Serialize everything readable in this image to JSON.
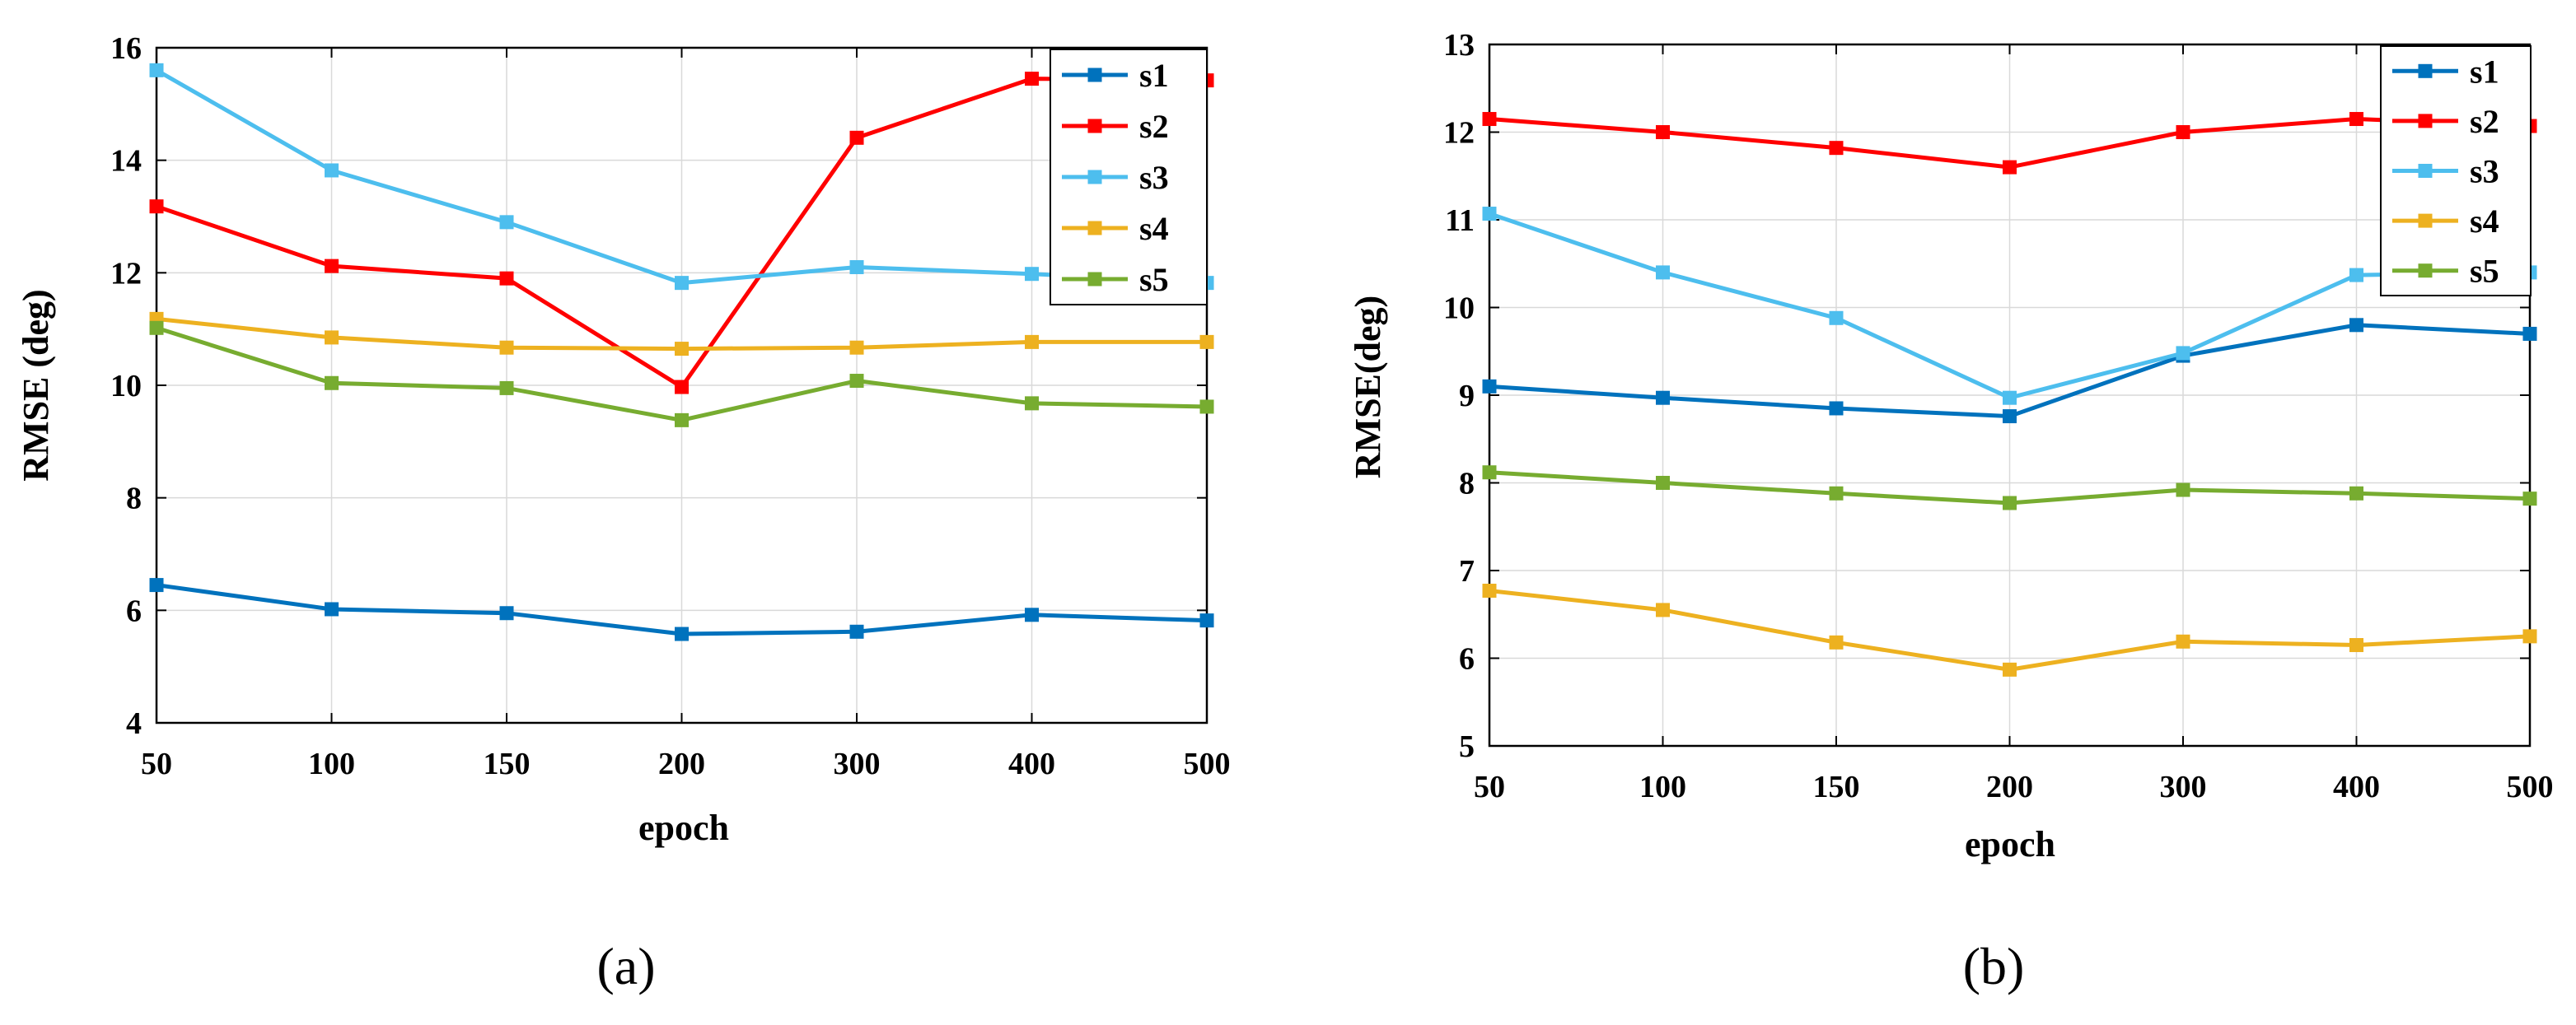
{
  "colors": {
    "s1": "#0072BD",
    "s2": "#FF0000",
    "s3": "#4DBEEE",
    "s4": "#EDB120",
    "s5": "#77AC30",
    "grid": "#d9d9d9",
    "axis": "#000000"
  },
  "chart_data": [
    {
      "type": "line",
      "caption": "(a)",
      "xlabel": "epoch",
      "ylabel": "RMSE (deg)",
      "categories": [
        "50",
        "100",
        "150",
        "200",
        "300",
        "400",
        "500"
      ],
      "ylim": [
        4,
        16
      ],
      "yticks": [
        "4",
        "6",
        "8",
        "10",
        "12",
        "14",
        "16"
      ],
      "grid": true,
      "legend_position": "top-right",
      "series": [
        {
          "name": "s1",
          "color_key": "s1",
          "values": [
            6.45,
            6.02,
            5.95,
            5.58,
            5.62,
            5.92,
            5.82
          ]
        },
        {
          "name": "s2",
          "color_key": "s2",
          "values": [
            13.18,
            12.12,
            11.9,
            9.97,
            14.4,
            15.45,
            15.42
          ]
        },
        {
          "name": "s3",
          "color_key": "s3",
          "values": [
            15.6,
            13.82,
            12.9,
            11.82,
            12.1,
            11.98,
            11.82
          ]
        },
        {
          "name": "s4",
          "color_key": "s4",
          "values": [
            11.18,
            10.85,
            10.67,
            10.65,
            10.67,
            10.77,
            10.77
          ]
        },
        {
          "name": "s5",
          "color_key": "s5",
          "values": [
            11.02,
            10.04,
            9.95,
            9.38,
            10.08,
            9.68,
            9.62
          ]
        }
      ]
    },
    {
      "type": "line",
      "caption": "(b)",
      "xlabel": "epoch",
      "ylabel": "RMSE(deg)",
      "categories": [
        "50",
        "100",
        "150",
        "200",
        "300",
        "400",
        "500"
      ],
      "ylim": [
        5,
        13
      ],
      "yticks": [
        "5",
        "6",
        "7",
        "8",
        "9",
        "10",
        "11",
        "12",
        "13"
      ],
      "grid": true,
      "legend_position": "top-right",
      "series": [
        {
          "name": "s1",
          "color_key": "s1",
          "values": [
            9.1,
            8.97,
            8.85,
            8.76,
            9.45,
            9.8,
            9.7
          ]
        },
        {
          "name": "s2",
          "color_key": "s2",
          "values": [
            12.15,
            12.0,
            11.82,
            11.6,
            12.0,
            12.15,
            12.07
          ]
        },
        {
          "name": "s3",
          "color_key": "s3",
          "values": [
            11.07,
            10.4,
            9.88,
            8.97,
            9.48,
            10.37,
            10.4
          ]
        },
        {
          "name": "s4",
          "color_key": "s4",
          "values": [
            6.77,
            6.55,
            6.18,
            5.87,
            6.19,
            6.15,
            6.25
          ]
        },
        {
          "name": "s5",
          "color_key": "s5",
          "values": [
            8.12,
            8.0,
            7.88,
            7.77,
            7.92,
            7.88,
            7.82
          ]
        }
      ]
    }
  ]
}
